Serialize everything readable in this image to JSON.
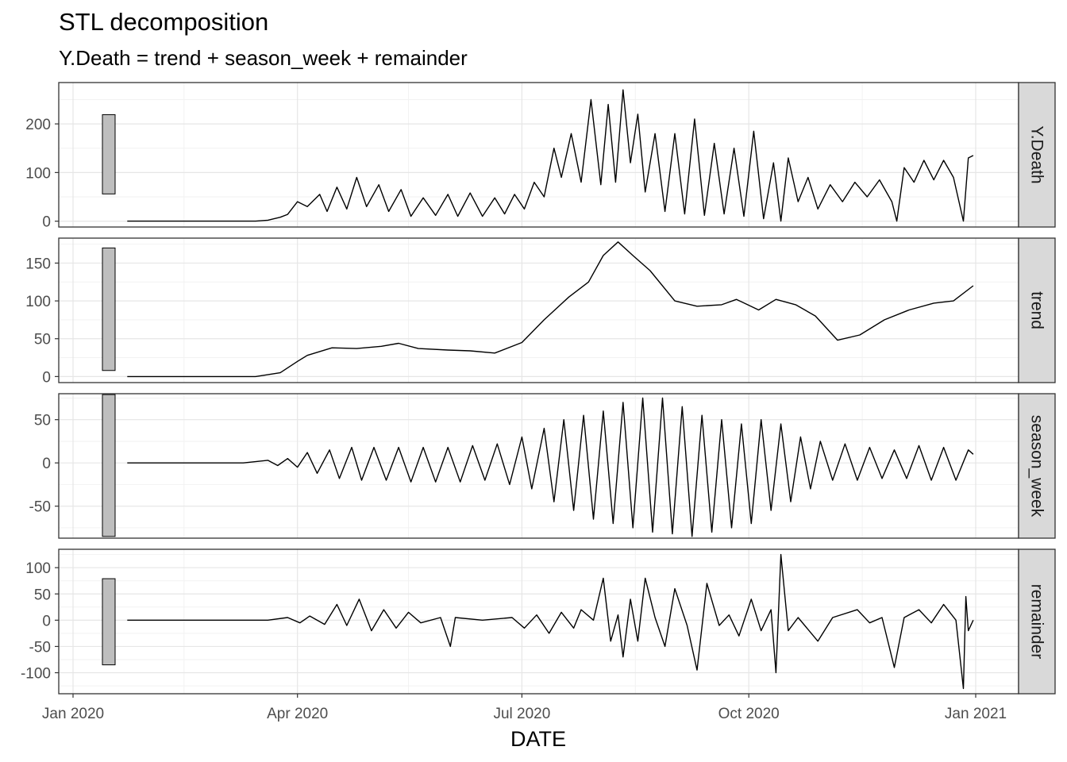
{
  "title": "STL decomposition",
  "subtitle": "Y.Death = trend + season_week + remainder",
  "chart_data": {
    "type": "line",
    "xlabel": "DATE",
    "x_range": [
      "2020-01-01",
      "2021-01-01"
    ],
    "x_ticks": [
      {
        "date": "2020-01-01",
        "label": "Jan 2020"
      },
      {
        "date": "2020-04-01",
        "label": "Apr 2020"
      },
      {
        "date": "2020-07-01",
        "label": "Jul 2020"
      },
      {
        "date": "2020-10-01",
        "label": "Oct 2020"
      },
      {
        "date": "2021-01-01",
        "label": "Jan 2021"
      }
    ],
    "grid": true,
    "facets": [
      {
        "label": "Y.Death",
        "ylim": [
          -12,
          285
        ],
        "yticks": [
          0,
          100,
          200
        ],
        "scale_bar": [
          56,
          219
        ],
        "points": [
          [
            "2020-01-23",
            0
          ],
          [
            "2020-03-15",
            0
          ],
          [
            "2020-03-20",
            2
          ],
          [
            "2020-03-25",
            8
          ],
          [
            "2020-03-28",
            14
          ],
          [
            "2020-04-01",
            40
          ],
          [
            "2020-04-05",
            30
          ],
          [
            "2020-04-10",
            55
          ],
          [
            "2020-04-13",
            20
          ],
          [
            "2020-04-17",
            70
          ],
          [
            "2020-04-21",
            25
          ],
          [
            "2020-04-25",
            90
          ],
          [
            "2020-04-29",
            30
          ],
          [
            "2020-05-04",
            75
          ],
          [
            "2020-05-08",
            20
          ],
          [
            "2020-05-13",
            65
          ],
          [
            "2020-05-17",
            10
          ],
          [
            "2020-05-22",
            48
          ],
          [
            "2020-05-27",
            12
          ],
          [
            "2020-06-01",
            55
          ],
          [
            "2020-06-05",
            10
          ],
          [
            "2020-06-10",
            58
          ],
          [
            "2020-06-15",
            10
          ],
          [
            "2020-06-20",
            48
          ],
          [
            "2020-06-24",
            15
          ],
          [
            "2020-06-28",
            55
          ],
          [
            "2020-07-02",
            25
          ],
          [
            "2020-07-06",
            80
          ],
          [
            "2020-07-10",
            50
          ],
          [
            "2020-07-14",
            150
          ],
          [
            "2020-07-17",
            90
          ],
          [
            "2020-07-21",
            180
          ],
          [
            "2020-07-25",
            80
          ],
          [
            "2020-07-29",
            250
          ],
          [
            "2020-08-02",
            75
          ],
          [
            "2020-08-05",
            240
          ],
          [
            "2020-08-08",
            80
          ],
          [
            "2020-08-11",
            270
          ],
          [
            "2020-08-14",
            120
          ],
          [
            "2020-08-17",
            220
          ],
          [
            "2020-08-20",
            60
          ],
          [
            "2020-08-24",
            180
          ],
          [
            "2020-08-28",
            20
          ],
          [
            "2020-09-01",
            180
          ],
          [
            "2020-09-05",
            15
          ],
          [
            "2020-09-09",
            210
          ],
          [
            "2020-09-13",
            12
          ],
          [
            "2020-09-17",
            160
          ],
          [
            "2020-09-21",
            15
          ],
          [
            "2020-09-25",
            150
          ],
          [
            "2020-09-29",
            10
          ],
          [
            "2020-10-03",
            185
          ],
          [
            "2020-10-07",
            5
          ],
          [
            "2020-10-11",
            120
          ],
          [
            "2020-10-14",
            0
          ],
          [
            "2020-10-17",
            130
          ],
          [
            "2020-10-21",
            40
          ],
          [
            "2020-10-25",
            90
          ],
          [
            "2020-10-29",
            25
          ],
          [
            "2020-11-03",
            75
          ],
          [
            "2020-11-08",
            40
          ],
          [
            "2020-11-13",
            80
          ],
          [
            "2020-11-18",
            50
          ],
          [
            "2020-11-23",
            85
          ],
          [
            "2020-11-28",
            40
          ],
          [
            "2020-11-30",
            0
          ],
          [
            "2020-12-03",
            110
          ],
          [
            "2020-12-07",
            80
          ],
          [
            "2020-12-11",
            125
          ],
          [
            "2020-12-15",
            85
          ],
          [
            "2020-12-19",
            125
          ],
          [
            "2020-12-23",
            90
          ],
          [
            "2020-12-27",
            0
          ],
          [
            "2020-12-29",
            130
          ],
          [
            "2020-12-31",
            135
          ]
        ]
      },
      {
        "label": "trend",
        "ylim": [
          -8,
          183
        ],
        "yticks": [
          0,
          50,
          100,
          150
        ],
        "scale_bar": [
          8,
          170
        ],
        "points": [
          [
            "2020-01-23",
            0
          ],
          [
            "2020-03-15",
            0
          ],
          [
            "2020-03-25",
            5
          ],
          [
            "2020-04-01",
            20
          ],
          [
            "2020-04-05",
            28
          ],
          [
            "2020-04-15",
            38
          ],
          [
            "2020-04-25",
            37
          ],
          [
            "2020-05-05",
            40
          ],
          [
            "2020-05-12",
            44
          ],
          [
            "2020-05-20",
            37
          ],
          [
            "2020-06-01",
            35
          ],
          [
            "2020-06-10",
            34
          ],
          [
            "2020-06-20",
            31
          ],
          [
            "2020-07-01",
            45
          ],
          [
            "2020-07-10",
            75
          ],
          [
            "2020-07-20",
            105
          ],
          [
            "2020-07-28",
            125
          ],
          [
            "2020-08-03",
            160
          ],
          [
            "2020-08-09",
            178
          ],
          [
            "2020-08-15",
            160
          ],
          [
            "2020-08-22",
            140
          ],
          [
            "2020-09-01",
            100
          ],
          [
            "2020-09-10",
            93
          ],
          [
            "2020-09-20",
            95
          ],
          [
            "2020-09-26",
            102
          ],
          [
            "2020-10-05",
            88
          ],
          [
            "2020-10-12",
            102
          ],
          [
            "2020-10-20",
            95
          ],
          [
            "2020-10-28",
            80
          ],
          [
            "2020-11-06",
            48
          ],
          [
            "2020-11-15",
            55
          ],
          [
            "2020-11-25",
            75
          ],
          [
            "2020-12-05",
            88
          ],
          [
            "2020-12-15",
            97
          ],
          [
            "2020-12-23",
            100
          ],
          [
            "2020-12-31",
            120
          ]
        ]
      },
      {
        "label": "season_week",
        "ylim": [
          -87,
          80
        ],
        "yticks": [
          -50,
          0,
          50
        ],
        "scale_bar": [
          -85,
          79
        ],
        "points": [
          [
            "2020-01-23",
            0
          ],
          [
            "2020-03-10",
            0
          ],
          [
            "2020-03-20",
            3
          ],
          [
            "2020-03-24",
            -3
          ],
          [
            "2020-03-28",
            5
          ],
          [
            "2020-04-01",
            -5
          ],
          [
            "2020-04-05",
            12
          ],
          [
            "2020-04-09",
            -12
          ],
          [
            "2020-04-14",
            15
          ],
          [
            "2020-04-18",
            -18
          ],
          [
            "2020-04-23",
            18
          ],
          [
            "2020-04-27",
            -20
          ],
          [
            "2020-05-02",
            18
          ],
          [
            "2020-05-07",
            -20
          ],
          [
            "2020-05-12",
            18
          ],
          [
            "2020-05-17",
            -22
          ],
          [
            "2020-05-22",
            18
          ],
          [
            "2020-05-27",
            -22
          ],
          [
            "2020-06-01",
            18
          ],
          [
            "2020-06-06",
            -22
          ],
          [
            "2020-06-11",
            20
          ],
          [
            "2020-06-16",
            -20
          ],
          [
            "2020-06-21",
            22
          ],
          [
            "2020-06-26",
            -25
          ],
          [
            "2020-07-01",
            30
          ],
          [
            "2020-07-05",
            -30
          ],
          [
            "2020-07-10",
            40
          ],
          [
            "2020-07-14",
            -45
          ],
          [
            "2020-07-18",
            50
          ],
          [
            "2020-07-22",
            -55
          ],
          [
            "2020-07-26",
            55
          ],
          [
            "2020-07-30",
            -65
          ],
          [
            "2020-08-03",
            60
          ],
          [
            "2020-08-07",
            -70
          ],
          [
            "2020-08-11",
            70
          ],
          [
            "2020-08-15",
            -75
          ],
          [
            "2020-08-19",
            75
          ],
          [
            "2020-08-23",
            -80
          ],
          [
            "2020-08-27",
            75
          ],
          [
            "2020-08-31",
            -82
          ],
          [
            "2020-09-04",
            65
          ],
          [
            "2020-09-08",
            -85
          ],
          [
            "2020-09-12",
            55
          ],
          [
            "2020-09-16",
            -80
          ],
          [
            "2020-09-20",
            50
          ],
          [
            "2020-09-24",
            -75
          ],
          [
            "2020-09-28",
            45
          ],
          [
            "2020-10-02",
            -70
          ],
          [
            "2020-10-06",
            50
          ],
          [
            "2020-10-10",
            -55
          ],
          [
            "2020-10-14",
            45
          ],
          [
            "2020-10-18",
            -45
          ],
          [
            "2020-10-22",
            30
          ],
          [
            "2020-10-26",
            -30
          ],
          [
            "2020-10-30",
            25
          ],
          [
            "2020-11-04",
            -20
          ],
          [
            "2020-11-09",
            22
          ],
          [
            "2020-11-14",
            -20
          ],
          [
            "2020-11-19",
            18
          ],
          [
            "2020-11-24",
            -18
          ],
          [
            "2020-11-29",
            15
          ],
          [
            "2020-12-04",
            -18
          ],
          [
            "2020-12-09",
            20
          ],
          [
            "2020-12-14",
            -20
          ],
          [
            "2020-12-19",
            18
          ],
          [
            "2020-12-24",
            -20
          ],
          [
            "2020-12-29",
            15
          ],
          [
            "2020-12-31",
            10
          ]
        ]
      },
      {
        "label": "remainder",
        "ylim": [
          -140,
          135
        ],
        "yticks": [
          -100,
          -50,
          0,
          50,
          100
        ],
        "scale_bar": [
          -85,
          79
        ],
        "points": [
          [
            "2020-01-23",
            0
          ],
          [
            "2020-03-20",
            0
          ],
          [
            "2020-03-28",
            5
          ],
          [
            "2020-04-02",
            -5
          ],
          [
            "2020-04-06",
            8
          ],
          [
            "2020-04-12",
            -8
          ],
          [
            "2020-04-17",
            30
          ],
          [
            "2020-04-21",
            -10
          ],
          [
            "2020-04-26",
            40
          ],
          [
            "2020-05-01",
            -20
          ],
          [
            "2020-05-06",
            20
          ],
          [
            "2020-05-11",
            -15
          ],
          [
            "2020-05-16",
            15
          ],
          [
            "2020-05-21",
            -5
          ],
          [
            "2020-05-29",
            5
          ],
          [
            "2020-06-02",
            -50
          ],
          [
            "2020-06-04",
            5
          ],
          [
            "2020-06-15",
            0
          ],
          [
            "2020-06-27",
            5
          ],
          [
            "2020-07-02",
            -15
          ],
          [
            "2020-07-07",
            10
          ],
          [
            "2020-07-12",
            -25
          ],
          [
            "2020-07-17",
            15
          ],
          [
            "2020-07-22",
            -15
          ],
          [
            "2020-07-25",
            20
          ],
          [
            "2020-07-30",
            0
          ],
          [
            "2020-08-03",
            80
          ],
          [
            "2020-08-06",
            -40
          ],
          [
            "2020-08-09",
            10
          ],
          [
            "2020-08-11",
            -70
          ],
          [
            "2020-08-14",
            40
          ],
          [
            "2020-08-17",
            -40
          ],
          [
            "2020-08-20",
            80
          ],
          [
            "2020-08-24",
            5
          ],
          [
            "2020-08-28",
            -50
          ],
          [
            "2020-09-01",
            60
          ],
          [
            "2020-09-06",
            -10
          ],
          [
            "2020-09-10",
            -95
          ],
          [
            "2020-09-14",
            70
          ],
          [
            "2020-09-19",
            -10
          ],
          [
            "2020-09-23",
            10
          ],
          [
            "2020-09-27",
            -30
          ],
          [
            "2020-10-02",
            40
          ],
          [
            "2020-10-06",
            -20
          ],
          [
            "2020-10-10",
            20
          ],
          [
            "2020-10-12",
            -100
          ],
          [
            "2020-10-14",
            125
          ],
          [
            "2020-10-17",
            -20
          ],
          [
            "2020-10-21",
            5
          ],
          [
            "2020-10-29",
            -40
          ],
          [
            "2020-11-04",
            5
          ],
          [
            "2020-11-14",
            20
          ],
          [
            "2020-11-19",
            -5
          ],
          [
            "2020-11-24",
            5
          ],
          [
            "2020-11-29",
            -90
          ],
          [
            "2020-12-03",
            5
          ],
          [
            "2020-12-09",
            20
          ],
          [
            "2020-12-14",
            -5
          ],
          [
            "2020-12-19",
            30
          ],
          [
            "2020-12-24",
            0
          ],
          [
            "2020-12-27",
            -130
          ],
          [
            "2020-12-28",
            45
          ],
          [
            "2020-12-29",
            -20
          ],
          [
            "2020-12-31",
            0
          ]
        ]
      }
    ]
  }
}
